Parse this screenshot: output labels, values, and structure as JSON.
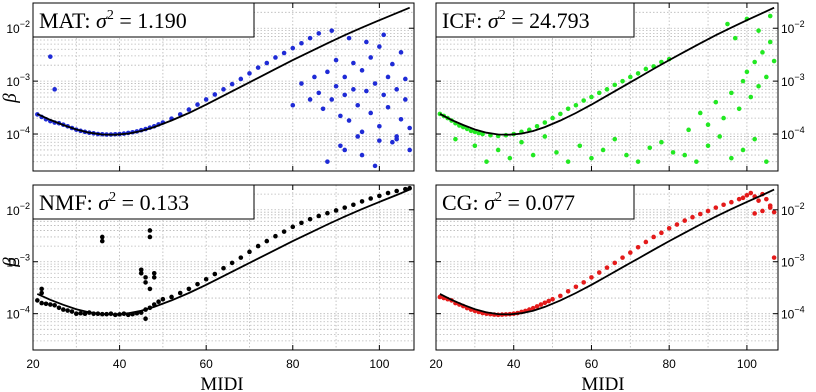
{
  "figure": {
    "y_label": "β",
    "x_label": "MIDI"
  },
  "chart_data": [
    {
      "type": "scatter",
      "title": "MAT: σ² = 1.190",
      "title_prefix": "MAT: ",
      "title_var": "σ",
      "title_exp": "2",
      "title_value": " = 1.190",
      "xlim": [
        20,
        108
      ],
      "ylim": [
        2e-05,
        0.03
      ],
      "yscale": "log",
      "xticks": [],
      "yticks": [
        0.0001,
        0.001,
        0.01
      ],
      "ytick_labels": [
        {
          "base": "10",
          "exp": "−4"
        },
        {
          "base": "10",
          "exp": "−3"
        },
        {
          "base": "10",
          "exp": "−2"
        }
      ],
      "ytick_side": "left",
      "grid": true,
      "point_color": "#1f2bd6",
      "fit_color": "#000000",
      "fit": {
        "x": [
          21,
          24,
          27,
          30,
          33,
          36,
          39,
          42,
          45,
          48,
          52,
          56,
          60,
          64,
          68,
          72,
          76,
          80,
          84,
          88,
          92,
          96,
          100,
          104,
          107
        ],
        "y": [
          0.00024,
          0.000185,
          0.000148,
          0.000122,
          0.000106,
          9.8e-05,
          9.7e-05,
          0.000102,
          0.000114,
          0.000135,
          0.00018,
          0.00025,
          0.00036,
          0.00053,
          0.00078,
          0.00115,
          0.0017,
          0.0025,
          0.0036,
          0.0052,
          0.0074,
          0.0103,
          0.0142,
          0.0193,
          0.0245
        ]
      },
      "points": {
        "x": [
          21,
          22,
          23,
          24,
          25,
          26,
          27,
          28,
          29,
          30,
          31,
          32,
          33,
          34,
          35,
          36,
          37,
          38,
          39,
          40,
          41,
          42,
          43,
          44,
          45,
          46,
          47,
          48,
          49,
          50,
          52,
          54,
          56,
          58,
          60,
          62,
          64,
          66,
          68,
          70,
          72,
          74,
          76,
          78,
          80,
          82,
          84,
          86,
          24,
          25,
          80,
          82,
          84,
          85,
          86,
          87,
          88,
          89,
          90,
          90,
          91,
          92,
          92,
          93,
          94,
          94,
          95,
          96,
          96,
          97,
          98,
          98,
          99,
          100,
          100,
          101,
          102,
          102,
          103,
          104,
          104,
          105,
          106,
          106,
          107,
          88,
          92,
          96,
          100,
          104,
          89,
          93,
          97,
          101,
          105,
          91,
          95,
          99,
          103,
          107
        ],
        "y": [
          0.000235,
          0.00021,
          0.00019,
          0.000175,
          0.000165,
          0.00016,
          0.00015,
          0.00014,
          0.00013,
          0.000121,
          0.000115,
          0.00011,
          0.000106,
          0.000103,
          0.0001,
          9.9e-05,
          9.8e-05,
          9.8e-05,
          9.9e-05,
          0.0001,
          0.000102,
          0.000105,
          0.000108,
          0.000112,
          0.000118,
          0.000124,
          0.000132,
          0.00014,
          0.000152,
          0.000165,
          0.000195,
          0.000235,
          0.00029,
          0.00036,
          0.00045,
          0.00056,
          0.0007,
          0.00088,
          0.0011,
          0.0014,
          0.0018,
          0.0022,
          0.0028,
          0.0034,
          0.0042,
          0.0052,
          0.0065,
          0.008,
          0.0029,
          0.0007,
          0.00035,
          0.0009,
          0.00045,
          0.0012,
          0.0006,
          0.0003,
          0.0015,
          0.00045,
          0.0025,
          0.0008,
          0.00022,
          0.0012,
          0.00055,
          0.00018,
          0.0022,
          0.0007,
          0.00035,
          0.0016,
          0.00011,
          0.00065,
          0.0028,
          0.00025,
          0.0009,
          0.0045,
          0.00014,
          0.00055,
          0.0012,
          0.00032,
          0.0021,
          8e-05,
          0.0007,
          0.00019,
          0.0011,
          0.00045,
          0.00013,
          3e-05,
          5e-05,
          4e-05,
          7.5e-05,
          9e-05,
          0.009,
          0.0065,
          0.0055,
          0.0075,
          0.0035,
          6e-05,
          9e-05,
          2.5e-05,
          7e-05,
          5e-05
        ]
      }
    },
    {
      "type": "scatter",
      "title": "ICF: σ² = 24.793",
      "title_prefix": "ICF: ",
      "title_var": "σ",
      "title_exp": "2",
      "title_value": " = 24.793",
      "xlim": [
        20,
        108
      ],
      "ylim": [
        2e-05,
        0.03
      ],
      "yscale": "log",
      "xticks": [],
      "yticks": [
        0.0001,
        0.001,
        0.01
      ],
      "ytick_labels": [
        {
          "base": "10",
          "exp": "−4"
        },
        {
          "base": "10",
          "exp": "−3"
        },
        {
          "base": "10",
          "exp": "−2"
        }
      ],
      "ytick_side": "right",
      "grid": true,
      "point_color": "#22e822",
      "fit_color": "#000000",
      "fit": {
        "x": [
          21,
          24,
          27,
          30,
          33,
          36,
          39,
          42,
          45,
          48,
          52,
          56,
          60,
          64,
          68,
          72,
          76,
          80,
          84,
          88,
          92,
          96,
          100,
          104,
          107
        ],
        "y": [
          0.00024,
          0.000185,
          0.000148,
          0.000122,
          0.000106,
          9.8e-05,
          9.7e-05,
          0.000102,
          0.000114,
          0.000135,
          0.00018,
          0.00025,
          0.00036,
          0.00053,
          0.00078,
          0.00115,
          0.0017,
          0.0025,
          0.0036,
          0.0052,
          0.0074,
          0.0103,
          0.0142,
          0.0193,
          0.0245
        ]
      },
      "points": {
        "x": [
          21,
          22,
          23,
          24,
          25,
          26,
          27,
          28,
          29,
          30,
          31,
          32,
          34,
          36,
          38,
          40,
          42,
          44,
          46,
          48,
          50,
          52,
          54,
          56,
          58,
          60,
          62,
          64,
          66,
          68,
          70,
          72,
          74,
          76,
          78,
          80,
          25,
          30,
          33,
          36,
          39,
          42,
          45,
          48,
          51,
          54,
          57,
          60,
          63,
          66,
          69,
          72,
          75,
          78,
          81,
          84,
          87,
          90,
          93,
          96,
          99,
          102,
          105,
          85,
          88,
          90,
          92,
          94,
          96,
          98,
          99,
          100,
          101,
          102,
          103,
          104,
          105,
          106,
          107,
          95,
          97,
          100,
          103,
          106
        ],
        "y": [
          0.00024,
          0.00022,
          0.0002,
          0.00018,
          0.00016,
          0.000145,
          0.000135,
          0.000125,
          0.000115,
          0.00011,
          0.000104,
          0.0001,
          9.5e-05,
          9.2e-05,
          9.5e-05,
          0.0001,
          0.00011,
          0.00012,
          0.00014,
          0.000165,
          0.0002,
          0.00024,
          0.0003,
          0.00035,
          0.00043,
          0.0005,
          0.0006,
          0.0007,
          0.00085,
          0.001,
          0.0012,
          0.0014,
          0.0017,
          0.0019,
          0.0023,
          0.0026,
          8e-05,
          6e-05,
          3e-05,
          5e-05,
          3.5e-05,
          7e-05,
          4e-05,
          9e-05,
          4.5e-05,
          3e-05,
          6e-05,
          3.5e-05,
          5e-05,
          8e-05,
          4e-05,
          3e-05,
          5.5e-05,
          7e-05,
          4.5e-05,
          4e-05,
          3e-05,
          6e-05,
          9e-05,
          3.5e-05,
          5e-05,
          8e-05,
          3e-05,
          0.00012,
          0.00025,
          0.00015,
          0.0004,
          0.0002,
          0.0006,
          0.0003,
          0.001,
          0.0015,
          0.0005,
          0.0023,
          0.0008,
          0.0035,
          0.0012,
          0.0055,
          0.0024,
          0.012,
          0.0065,
          0.015,
          0.009,
          0.017
        ]
      }
    },
    {
      "type": "scatter",
      "title": "NMF: σ² = 0.133",
      "title_prefix": "NMF: ",
      "title_var": "σ",
      "title_exp": "2",
      "title_value": " = 0.133",
      "xlim": [
        20,
        108
      ],
      "ylim": [
        2e-05,
        0.03
      ],
      "yscale": "log",
      "xticks": [
        20,
        40,
        60,
        80,
        100
      ],
      "yticks": [
        0.0001,
        0.001,
        0.01
      ],
      "ytick_labels": [
        {
          "base": "10",
          "exp": "−4"
        },
        {
          "base": "10",
          "exp": "−3"
        },
        {
          "base": "10",
          "exp": "−2"
        }
      ],
      "ytick_side": "left",
      "grid": true,
      "point_color": "#000000",
      "fit_color": "#000000",
      "fit": {
        "x": [
          21,
          24,
          27,
          30,
          33,
          36,
          39,
          42,
          45,
          48,
          52,
          56,
          60,
          64,
          68,
          72,
          76,
          80,
          84,
          88,
          92,
          96,
          100,
          104,
          107
        ],
        "y": [
          0.00024,
          0.000185,
          0.000148,
          0.000122,
          0.000106,
          9.8e-05,
          9.7e-05,
          0.000102,
          0.000114,
          0.000135,
          0.00018,
          0.00025,
          0.00036,
          0.00053,
          0.00078,
          0.00115,
          0.0017,
          0.0025,
          0.0036,
          0.0052,
          0.0074,
          0.0103,
          0.0142,
          0.0193,
          0.0245
        ]
      },
      "points": {
        "x": [
          21,
          22,
          23,
          24,
          25,
          26,
          27,
          28,
          29,
          30,
          31,
          32,
          33,
          34,
          35,
          36,
          37,
          38,
          39,
          40,
          41,
          42,
          43,
          44,
          45,
          46,
          47,
          48,
          49,
          50,
          52,
          54,
          56,
          58,
          60,
          62,
          64,
          66,
          68,
          70,
          72,
          74,
          76,
          78,
          80,
          82,
          84,
          86,
          88,
          90,
          92,
          94,
          96,
          98,
          100,
          102,
          104,
          106,
          107,
          36,
          36,
          45,
          45,
          46,
          46,
          47,
          47,
          47,
          48,
          48,
          22,
          22,
          46
        ],
        "y": [
          0.00018,
          0.00016,
          0.000155,
          0.00015,
          0.000145,
          0.00013,
          0.00012,
          0.000115,
          0.00011,
          0.0001,
          0.000102,
          0.0001,
          0.000105,
          0.0001,
          0.0001,
          9.8e-05,
          9.8e-05,
          0.0001,
          9.5e-05,
          9.7e-05,
          0.0001,
          9.5e-05,
          9.8e-05,
          0.000102,
          0.000105,
          0.00012,
          0.00013,
          0.00015,
          0.00017,
          0.00019,
          0.00021,
          0.00025,
          0.0003,
          0.00037,
          0.00046,
          0.00058,
          0.00075,
          0.00095,
          0.0012,
          0.00155,
          0.002,
          0.0025,
          0.0031,
          0.0038,
          0.0047,
          0.0056,
          0.0066,
          0.0076,
          0.0086,
          0.0097,
          0.011,
          0.0125,
          0.0145,
          0.0165,
          0.0185,
          0.021,
          0.023,
          0.025,
          0.026,
          0.0025,
          0.003,
          0.0006,
          0.0007,
          0.0004,
          0.0005,
          0.003,
          0.004,
          0.0003,
          0.0005,
          0.0006,
          0.00025,
          0.0003,
          8e-05
        ]
      }
    },
    {
      "type": "scatter",
      "title": "CG: σ² = 0.077",
      "title_prefix": "CG: ",
      "title_var": "σ",
      "title_exp": "2",
      "title_value": " = 0.077",
      "xlim": [
        20,
        108
      ],
      "ylim": [
        2e-05,
        0.03
      ],
      "yscale": "log",
      "xticks": [
        20,
        40,
        60,
        80,
        100
      ],
      "yticks": [
        0.0001,
        0.001,
        0.01
      ],
      "ytick_labels": [
        {
          "base": "10",
          "exp": "−4"
        },
        {
          "base": "10",
          "exp": "−3"
        },
        {
          "base": "10",
          "exp": "−2"
        }
      ],
      "ytick_side": "right",
      "grid": true,
      "point_color": "#e41a1a",
      "fit_color": "#000000",
      "fit": {
        "x": [
          21,
          24,
          27,
          30,
          33,
          36,
          39,
          42,
          45,
          48,
          52,
          56,
          60,
          64,
          68,
          72,
          76,
          80,
          84,
          88,
          92,
          96,
          100,
          104,
          107
        ],
        "y": [
          0.00024,
          0.000185,
          0.000148,
          0.000122,
          0.000106,
          9.8e-05,
          9.7e-05,
          0.000102,
          0.000114,
          0.000135,
          0.00018,
          0.00025,
          0.00036,
          0.00053,
          0.00078,
          0.00115,
          0.0017,
          0.0025,
          0.0036,
          0.0052,
          0.0074,
          0.0103,
          0.0142,
          0.0193,
          0.0245
        ]
      },
      "points": {
        "x": [
          21,
          22,
          23,
          24,
          25,
          26,
          27,
          28,
          29,
          30,
          31,
          32,
          33,
          34,
          35,
          36,
          37,
          38,
          39,
          40,
          41,
          42,
          43,
          44,
          45,
          46,
          47,
          48,
          49,
          50,
          52,
          54,
          56,
          58,
          60,
          62,
          64,
          66,
          68,
          70,
          72,
          74,
          76,
          78,
          80,
          82,
          84,
          86,
          88,
          90,
          92,
          94,
          96,
          98,
          99,
          100,
          101,
          102,
          103,
          104,
          105,
          106,
          107,
          107,
          102,
          104,
          106
        ],
        "y": [
          0.00021,
          0.0002,
          0.00019,
          0.00018,
          0.00016,
          0.00015,
          0.00014,
          0.000128,
          0.00012,
          0.000113,
          0.000108,
          0.000103,
          0.0001,
          9.8e-05,
          9.6e-05,
          9.5e-05,
          9.6e-05,
          9.7e-05,
          9.8e-05,
          0.0001,
          0.000103,
          0.000108,
          0.000113,
          0.00012,
          0.000128,
          0.000138,
          0.00015,
          0.000162,
          0.000175,
          0.00019,
          0.00022,
          0.00027,
          0.00033,
          0.0004,
          0.0005,
          0.00062,
          0.00077,
          0.00095,
          0.0012,
          0.0015,
          0.0019,
          0.0024,
          0.003,
          0.0036,
          0.0044,
          0.0052,
          0.0062,
          0.0072,
          0.0083,
          0.0095,
          0.011,
          0.0125,
          0.014,
          0.016,
          0.017,
          0.019,
          0.021,
          0.018,
          0.015,
          0.02,
          0.016,
          0.012,
          0.009,
          0.0012,
          0.0085,
          0.0095,
          0.011
        ]
      }
    }
  ]
}
